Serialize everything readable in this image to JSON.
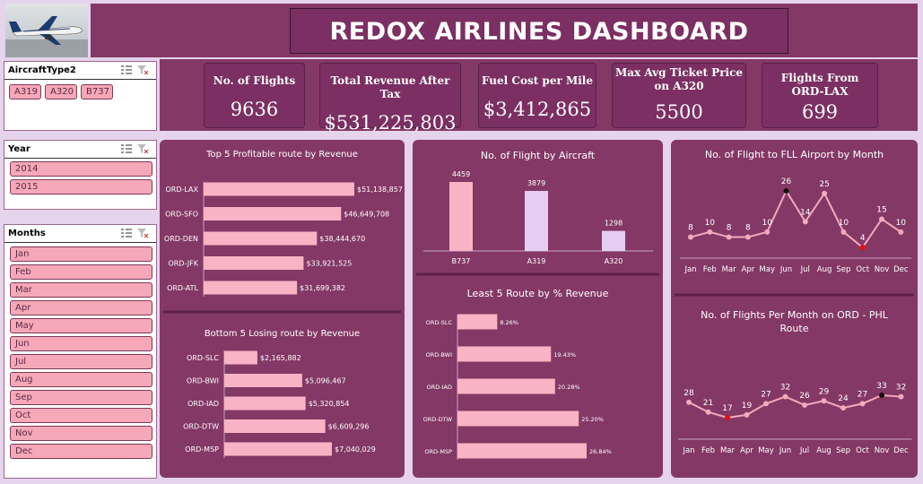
{
  "header": {
    "title": "REDOX AIRLINES DASHBOARD"
  },
  "slicers": {
    "aircraft": {
      "title": "AircraftType2",
      "items": [
        "A319",
        "A320",
        "B737"
      ]
    },
    "year": {
      "title": "Year",
      "items": [
        "2014",
        "2015"
      ]
    },
    "months": {
      "title": "Months",
      "items": [
        "Jan",
        "Feb",
        "Mar",
        "Apr",
        "May",
        "Jun",
        "Jul",
        "Aug",
        "Sep",
        "Oct",
        "Nov",
        "Dec"
      ]
    }
  },
  "kpis": [
    {
      "label": "No. of Flights",
      "value": "9636"
    },
    {
      "label": "Total Revenue After Tax",
      "value": "$531,225,803"
    },
    {
      "label": "Fuel Cost per Mile",
      "value": "$3,412,865"
    },
    {
      "label": "Max Avg Ticket Price on A320",
      "value": "5500"
    },
    {
      "label": "Flights From ORD-LAX",
      "value": "699"
    }
  ],
  "colors": {
    "panel": "#843866",
    "bar_pink": "#f8b4c4",
    "bar_lavender": "#e6ccf3",
    "line": "#f4a9bd",
    "marker_red": "#e01010",
    "marker_black": "#111111"
  },
  "chart_data": [
    {
      "id": "top5",
      "type": "bar",
      "title": "Top 5 Profitable route by Revenue",
      "categories": [
        "ORD-LAX",
        "ORD-SFO",
        "ORD-DEN",
        "ORD-JFK",
        "ORD-ATL"
      ],
      "values": [
        51138857,
        46649708,
        38444670,
        33921525,
        31699382
      ],
      "labels": [
        "$51,138,857",
        "$46,649,708",
        "$38,444,670",
        "$33,921,525",
        "$31,699,382"
      ]
    },
    {
      "id": "bottom5",
      "type": "bar",
      "title": "Bottom 5 Losing route by Revenue",
      "categories": [
        "ORD-SLC",
        "ORD-BWI",
        "ORD-IAD",
        "ORD-DTW",
        "ORD-MSP"
      ],
      "values": [
        2165882,
        5096467,
        5320854,
        6609296,
        7040029
      ],
      "labels": [
        "$2,165,882",
        "$5,096,467",
        "$5,320,854",
        "$6,609,296",
        "$7,040,029"
      ]
    },
    {
      "id": "aircraft",
      "type": "bar",
      "title": "No. of Flight by Aircraft",
      "categories": [
        "B737",
        "A319",
        "A320"
      ],
      "values": [
        4459,
        3879,
        1298
      ],
      "labels": [
        "4459",
        "3879",
        "1298"
      ]
    },
    {
      "id": "least5",
      "type": "bar",
      "title": "Least 5 Route by % Revenue",
      "categories": [
        "ORD-SLC",
        "ORD-BWI",
        "ORD-IAD",
        "ORD-DTW",
        "ORD-MSP"
      ],
      "values": [
        8.26,
        19.43,
        20.28,
        25.2,
        26.84
      ],
      "labels": [
        "8.26%",
        "19.43%",
        "20.28%",
        "25.20%",
        "26.84%"
      ]
    },
    {
      "id": "fll",
      "type": "line",
      "title": "No. of Flight to FLL Airport by Month",
      "categories": [
        "Jan",
        "Feb",
        "Mar",
        "Apr",
        "May",
        "Jun",
        "Jul",
        "Aug",
        "Sep",
        "Oct",
        "Nov",
        "Dec"
      ],
      "values": [
        8,
        10,
        8,
        8,
        10,
        26,
        14,
        25,
        10,
        4,
        15,
        10
      ],
      "max_index": 5,
      "min_index": 9
    },
    {
      "id": "phl",
      "type": "line",
      "title": "No. of Flights Per Month on ORD - PHL Route",
      "categories": [
        "Jan",
        "Feb",
        "Mar",
        "Apr",
        "May",
        "Jun",
        "Jul",
        "Aug",
        "Sep",
        "Oct",
        "Nov",
        "Dec"
      ],
      "values": [
        28,
        21,
        17,
        19,
        27,
        32,
        26,
        29,
        24,
        27,
        33,
        32
      ],
      "max_index": 10,
      "min_index": 2
    }
  ]
}
